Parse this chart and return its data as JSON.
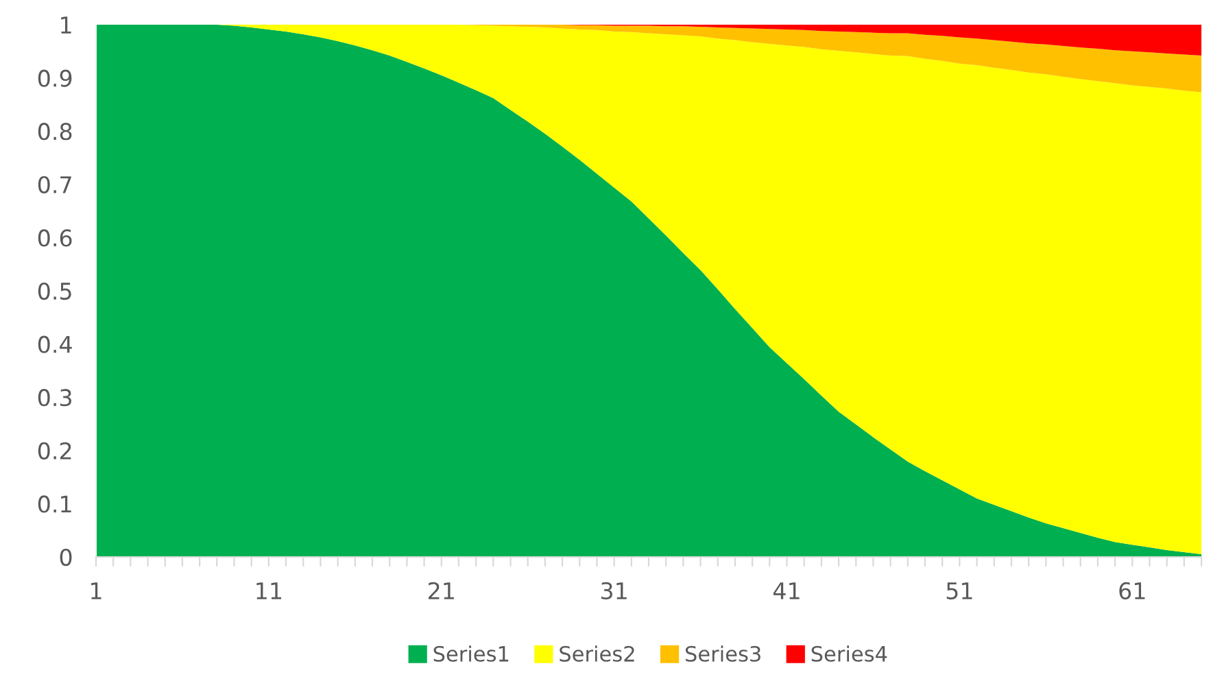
{
  "chart_data": {
    "type": "area",
    "stacked": true,
    "categories": [
      "1",
      null,
      null,
      null,
      null,
      null,
      null,
      null,
      null,
      null,
      "11",
      null,
      null,
      null,
      null,
      null,
      null,
      null,
      null,
      null,
      "21",
      null,
      null,
      null,
      null,
      null,
      null,
      null,
      null,
      null,
      "31",
      null,
      null,
      null,
      null,
      null,
      null,
      null,
      null,
      null,
      "41",
      null,
      null,
      null,
      null,
      null,
      null,
      null,
      null,
      null,
      "51",
      null,
      null,
      null,
      null,
      null,
      null,
      null,
      null,
      null,
      "61",
      null,
      null,
      null,
      null
    ],
    "series": [
      {
        "name": "Series1",
        "color": "#00b050",
        "values": [
          1,
          1,
          1,
          1,
          1,
          1,
          1,
          1,
          0.998,
          0.995,
          0.991,
          0.987,
          0.982,
          0.976,
          0.969,
          0.961,
          0.952,
          0.942,
          0.93,
          0.918,
          0.905,
          0.891,
          0.877,
          0.862,
          0.84,
          0.818,
          0.795,
          0.771,
          0.746,
          0.72,
          0.694,
          0.668,
          0.636,
          0.604,
          0.571,
          0.539,
          0.503,
          0.466,
          0.43,
          0.394,
          0.364,
          0.334,
          0.303,
          0.273,
          0.249,
          0.225,
          0.202,
          0.179,
          0.161,
          0.144,
          0.127,
          0.11,
          0.098,
          0.086,
          0.074,
          0.063,
          0.054,
          0.045,
          0.036,
          0.028,
          0.023,
          0.018,
          0.013,
          0.009,
          0.005
        ]
      },
      {
        "name": "Series2",
        "color": "#ffff00",
        "values": [
          0,
          0,
          0,
          0,
          0,
          0,
          0,
          0,
          0.002,
          0.005,
          0.009,
          0.013,
          0.018,
          0.024,
          0.031,
          0.039,
          0.048,
          0.058,
          0.07,
          0.082,
          0.095,
          0.109,
          0.122,
          0.136,
          0.157,
          0.178,
          0.2,
          0.222,
          0.245,
          0.27,
          0.293,
          0.318,
          0.348,
          0.378,
          0.409,
          0.439,
          0.471,
          0.505,
          0.537,
          0.57,
          0.597,
          0.624,
          0.651,
          0.678,
          0.699,
          0.72,
          0.74,
          0.762,
          0.775,
          0.788,
          0.8,
          0.814,
          0.821,
          0.829,
          0.836,
          0.844,
          0.848,
          0.853,
          0.858,
          0.862,
          0.863,
          0.865,
          0.867,
          0.867,
          0.868
        ]
      },
      {
        "name": "Series3",
        "color": "#ffc000",
        "values": [
          0,
          0,
          0,
          0,
          0,
          0,
          0,
          0,
          0,
          0,
          0,
          0,
          0,
          0,
          0,
          0,
          0,
          0,
          0,
          0,
          0,
          0,
          0.001,
          0.002,
          0.003,
          0.004,
          0.005,
          0.007,
          0.008,
          0.009,
          0.011,
          0.012,
          0.014,
          0.015,
          0.017,
          0.018,
          0.021,
          0.023,
          0.026,
          0.028,
          0.03,
          0.032,
          0.034,
          0.036,
          0.038,
          0.04,
          0.042,
          0.043,
          0.045,
          0.047,
          0.049,
          0.05,
          0.052,
          0.053,
          0.055,
          0.056,
          0.058,
          0.059,
          0.061,
          0.062,
          0.064,
          0.065,
          0.066,
          0.068,
          0.069
        ]
      },
      {
        "name": "Series4",
        "color": "#ff0000",
        "values": [
          0,
          0,
          0,
          0,
          0,
          0,
          0,
          0,
          0,
          0,
          0,
          0,
          0,
          0,
          0,
          0,
          0,
          0,
          0,
          0,
          0,
          0,
          0,
          0,
          0,
          0,
          0,
          0,
          0.001,
          0.001,
          0.002,
          0.002,
          0.002,
          0.003,
          0.003,
          0.004,
          0.005,
          0.006,
          0.007,
          0.008,
          0.009,
          0.01,
          0.012,
          0.013,
          0.014,
          0.015,
          0.016,
          0.016,
          0.019,
          0.021,
          0.024,
          0.026,
          0.029,
          0.032,
          0.035,
          0.037,
          0.04,
          0.043,
          0.045,
          0.048,
          0.05,
          0.052,
          0.054,
          0.056,
          0.058
        ]
      }
    ],
    "ylim": [
      0,
      1
    ],
    "yticks": [
      0,
      0.1,
      0.2,
      0.3,
      0.4,
      0.5,
      0.6,
      0.7,
      0.8,
      0.9,
      1
    ],
    "grid": false,
    "legend": "bottom"
  }
}
